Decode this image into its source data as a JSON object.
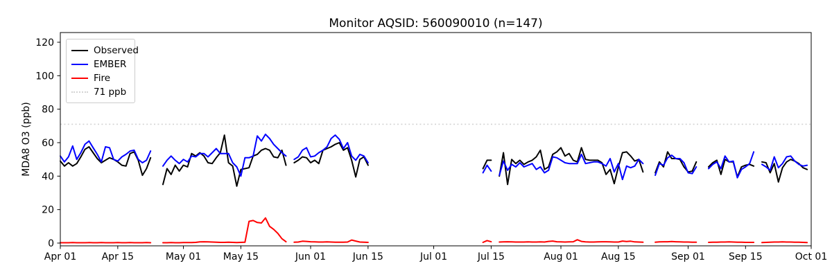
{
  "title": "Monitor AQSID: 560090010 (n=147)",
  "ylabel": "MDA8 O3 (ppb)",
  "legend": {
    "items": [
      {
        "label": "Observed",
        "color": "#000000",
        "style": "solid"
      },
      {
        "label": "EMBER",
        "color": "#0000ff",
        "style": "solid"
      },
      {
        "label": "Fire",
        "color": "#ff0000",
        "style": "solid"
      },
      {
        "label": "71 ppb",
        "color": "#d3d3d3",
        "style": "dotted"
      }
    ]
  },
  "chart_data": {
    "type": "line",
    "title": "Monitor AQSID: 560090010 (n=147)",
    "xlabel": "",
    "ylabel": "MDA8 O3 (ppb)",
    "n_points": 147,
    "ylim": [
      -1.66,
      125.8
    ],
    "yticks": [
      0,
      20,
      40,
      60,
      80,
      100,
      120
    ],
    "x_unit": "days since Apr 01",
    "x_range_days": [
      0,
      183
    ],
    "xticks": [
      {
        "label": "Apr 01",
        "day": 0
      },
      {
        "label": "Apr 15",
        "day": 14
      },
      {
        "label": "May 01",
        "day": 30
      },
      {
        "label": "May 15",
        "day": 44
      },
      {
        "label": "Jun 01",
        "day": 61
      },
      {
        "label": "Jun 15",
        "day": 75
      },
      {
        "label": "Jul 01",
        "day": 91
      },
      {
        "label": "Jul 15",
        "day": 105
      },
      {
        "label": "Aug 01",
        "day": 122
      },
      {
        "label": "Aug 15",
        "day": 136
      },
      {
        "label": "Sep 01",
        "day": 153
      },
      {
        "label": "Sep 15",
        "day": 167
      },
      {
        "label": "Oct 01",
        "day": 183
      }
    ],
    "threshold": {
      "value": 71,
      "label": "71 ppb",
      "color": "#d3d3d3",
      "style": "dotted"
    },
    "series_colors": {
      "observed": "#000000",
      "ember": "#0000ff",
      "fire": "#ff0000"
    },
    "legend_position": "upper left",
    "grid": false,
    "gaps": [
      "Apr 24-25",
      "May 27",
      "Jun 16-Jul 12",
      "Jul 16",
      "Aug 22-23",
      "Sep 04-05",
      "Sep 18",
      "Oct 01"
    ],
    "segments": [
      {
        "start_day": 0,
        "dates": "Apr 01 - Apr 23",
        "observed": [
          49,
          46,
          48,
          46,
          47.5,
          51.5,
          56,
          57.5,
          54,
          50.5,
          48,
          49.5,
          51,
          50,
          48.5,
          46.5,
          46,
          53.5,
          54.5,
          49.5,
          40.5,
          44.5,
          51
        ],
        "ember": [
          52,
          48.5,
          51.5,
          58,
          50,
          54,
          59,
          61,
          57,
          53,
          48.5,
          57.5,
          57,
          50,
          49,
          51.5,
          53,
          55,
          55.5,
          50,
          48,
          49.5,
          55
        ],
        "fire": [
          0.2,
          0.2,
          0.2,
          0.3,
          0.2,
          0.2,
          0.2,
          0.3,
          0.2,
          0.2,
          0.3,
          0.2,
          0.2,
          0.2,
          0.3,
          0.2,
          0.2,
          0.3,
          0.2,
          0.2,
          0.2,
          0.3,
          0.2
        ]
      },
      {
        "start_day": 25,
        "dates": "Apr 26 - May 26",
        "observed": [
          35,
          44.5,
          41,
          46.5,
          43,
          46.5,
          45.5,
          53.5,
          52,
          54,
          52,
          48,
          47.5,
          51,
          54,
          64.5,
          48,
          46,
          34,
          44,
          44.5,
          45,
          52,
          53,
          55.5,
          56.5,
          55.5,
          51.5,
          51,
          55.5,
          46.5
        ],
        "ember": [
          46,
          49.5,
          52,
          49.5,
          47.5,
          50,
          48.5,
          52,
          51.5,
          53.5,
          53.5,
          51.5,
          54,
          56.5,
          53.5,
          53.5,
          53.5,
          48,
          45.5,
          40,
          51,
          51,
          52,
          64,
          61,
          65,
          62.5,
          59,
          56.5,
          54,
          52
        ],
        "fire": [
          0.2,
          0.2,
          0.3,
          0.2,
          0.2,
          0.3,
          0.3,
          0.3,
          0.4,
          0.7,
          0.8,
          0.7,
          0.6,
          0.5,
          0.4,
          0.4,
          0.5,
          0.4,
          0.3,
          0.4,
          0.5,
          13,
          13.5,
          12.3,
          12,
          15,
          10,
          8.2,
          5.8,
          2.6,
          0.8
        ]
      },
      {
        "start_day": 57,
        "dates": "May 28 - Jun 15",
        "observed": [
          48,
          49.5,
          51.5,
          51,
          48,
          49.5,
          47.5,
          55.5,
          56.5,
          57.5,
          59,
          60,
          55.5,
          57,
          49.5,
          39.5,
          50,
          51.5,
          46.5
        ],
        "ember": [
          50,
          51.5,
          55.5,
          57,
          51.5,
          52,
          54,
          55.5,
          57.5,
          62.5,
          64.5,
          62,
          56.5,
          60,
          52,
          49.5,
          53,
          52,
          48
        ],
        "fire": [
          0.5,
          0.6,
          1.1,
          1.0,
          0.8,
          0.7,
          0.6,
          0.6,
          0.7,
          0.6,
          0.5,
          0.5,
          0.5,
          0.6,
          1.8,
          1.2,
          0.6,
          0.5,
          0.4
        ]
      },
      {
        "start_day": 103,
        "dates": "Jul 13 - Jul 15",
        "observed": [
          44.5,
          49.5,
          49.5
        ],
        "ember": [
          42,
          46.5,
          43
        ],
        "fire": [
          0.4,
          1.5,
          0.8
        ]
      },
      {
        "start_day": 107,
        "dates": "Jul 17 - Aug 21",
        "observed": [
          40,
          54,
          35,
          50,
          47.5,
          49.5,
          47,
          48.5,
          49.5,
          51.5,
          55.5,
          44,
          45.5,
          53,
          54.5,
          57,
          52,
          53.5,
          49.5,
          48.5,
          57,
          50,
          49.5,
          49.5,
          49.5,
          48,
          41,
          44,
          35.5,
          45.5,
          54,
          54.5,
          52,
          49,
          50,
          42.5
        ],
        "ember": [
          40.5,
          49,
          43.5,
          47,
          45.5,
          48,
          45.5,
          46.5,
          47.5,
          44,
          45.5,
          42,
          43.5,
          51.5,
          51,
          49.5,
          48,
          47.5,
          47.5,
          47.5,
          53,
          47.5,
          48,
          48.5,
          48.5,
          47.5,
          46,
          50.5,
          42.5,
          47.5,
          38,
          46,
          45,
          46,
          50,
          47.5
        ],
        "fire": [
          0.6,
          0.7,
          0.8,
          0.7,
          0.6,
          0.6,
          0.6,
          0.7,
          0.6,
          0.6,
          0.7,
          0.6,
          1.0,
          1.2,
          0.8,
          0.7,
          0.6,
          0.7,
          0.8,
          2.0,
          1.0,
          0.7,
          0.6,
          0.6,
          0.7,
          0.8,
          0.8,
          0.7,
          0.6,
          0.6,
          1.2,
          0.9,
          1.1,
          0.7,
          0.6,
          0.5
        ]
      },
      {
        "start_day": 145,
        "dates": "Aug 24 - Sep 03",
        "observed": [
          42,
          48.5,
          45.5,
          54.5,
          50.5,
          50.5,
          50,
          45.5,
          42.5,
          43,
          48.5
        ],
        "ember": [
          40.5,
          47.5,
          46.5,
          51,
          52.5,
          50.5,
          50.5,
          48,
          42,
          41.5,
          45.5
        ],
        "fire": [
          0.5,
          0.7,
          0.8,
          0.8,
          0.9,
          0.8,
          0.7,
          0.6,
          0.6,
          0.5,
          0.5
        ]
      },
      {
        "start_day": 158,
        "dates": "Sep 06 - Sep 17",
        "observed": [
          45.5,
          48,
          49.5,
          41,
          50,
          48.5,
          48.5,
          39.5,
          45.5,
          46.5,
          47,
          46
        ],
        "ember": [
          44.5,
          47,
          48.5,
          44.5,
          52,
          48.5,
          49,
          39,
          44,
          45.5,
          47.5,
          54.5
        ],
        "fire": [
          0.4,
          0.5,
          0.5,
          0.6,
          0.6,
          0.7,
          0.6,
          0.5,
          0.5,
          0.4,
          0.4,
          0.4
        ]
      },
      {
        "start_day": 171,
        "dates": "Sep 19 - Sep 30",
        "observed": [
          48.5,
          48,
          42,
          47.5,
          36.5,
          45,
          48.5,
          50,
          49,
          47.5,
          45,
          44
        ],
        "ember": [
          47,
          45.5,
          43.5,
          51.5,
          45,
          47.5,
          51.5,
          52,
          49,
          47,
          46,
          46.5
        ],
        "fire": [
          0.3,
          0.4,
          0.5,
          0.6,
          0.6,
          0.7,
          0.6,
          0.6,
          0.5,
          0.5,
          0.4,
          0.3
        ]
      }
    ]
  }
}
